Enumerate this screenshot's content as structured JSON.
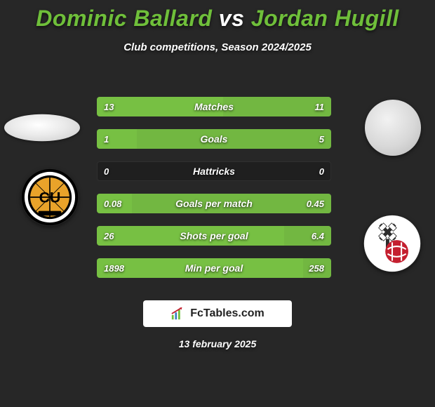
{
  "title": {
    "player1": "Dominic Ballard",
    "vs": "vs",
    "player2": "Jordan Hugill"
  },
  "subtitle": "Club competitions, Season 2024/2025",
  "colors": {
    "accent_green": "#6fbf3a",
    "bar_left": "#77c043",
    "bar_right": "#77c043",
    "row_bg": "#1f1f1f",
    "page_bg": "#272727",
    "text": "#ffffff",
    "brand_text": "#222222"
  },
  "badges": {
    "left": {
      "name": "Cambridge United",
      "outer": "#000000",
      "ring": "#ffffff",
      "inner": "#e9a32a",
      "text": "CU",
      "text_color": "#000000"
    },
    "right": {
      "name": "Rotherham United",
      "bg": "#ffffff",
      "ball": "#c41f2f",
      "mill": "#2c2c2c"
    }
  },
  "rows": [
    {
      "label": "Matches",
      "left": "13",
      "right": "11",
      "lw": 54,
      "rw": 46
    },
    {
      "label": "Goals",
      "left": "1",
      "right": "5",
      "lw": 17,
      "rw": 83
    },
    {
      "label": "Hattricks",
      "left": "0",
      "right": "0",
      "lw": 0,
      "rw": 0
    },
    {
      "label": "Goals per match",
      "left": "0.08",
      "right": "0.45",
      "lw": 15,
      "rw": 85
    },
    {
      "label": "Shots per goal",
      "left": "26",
      "right": "6.4",
      "lw": 80,
      "rw": 20
    },
    {
      "label": "Min per goal",
      "left": "1898",
      "right": "258",
      "lw": 88,
      "rw": 12
    }
  ],
  "footer": {
    "brand": "FcTables.com",
    "date": "13 february 2025"
  }
}
